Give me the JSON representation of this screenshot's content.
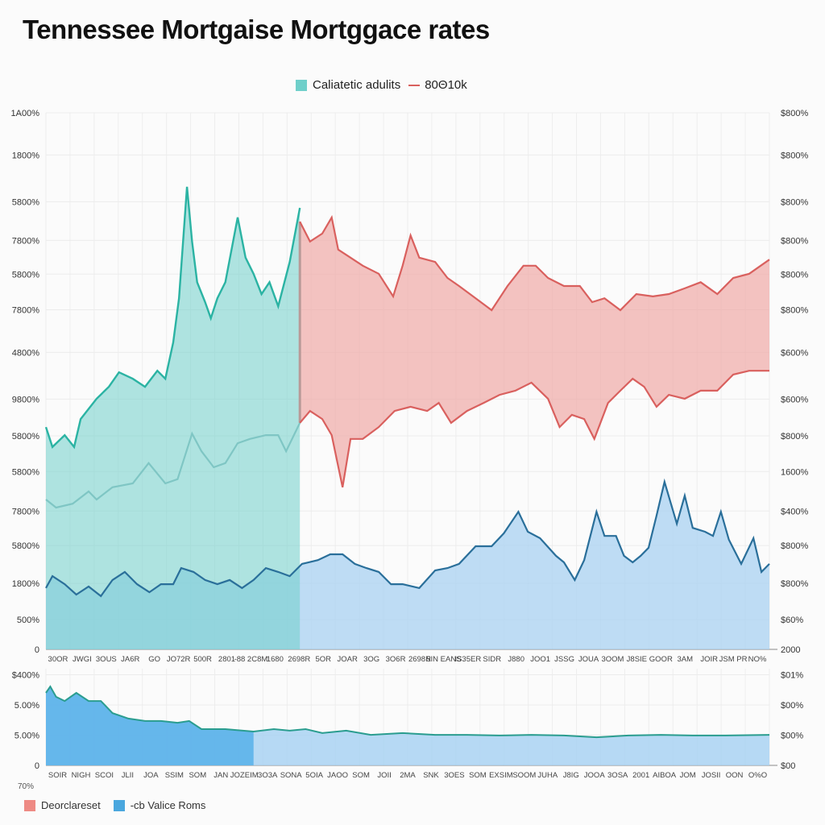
{
  "chart_data": [
    {
      "type": "area",
      "title": "Tennessee Mortgaise Mortggace rates",
      "legend": {
        "placement": "top-center",
        "entries": [
          "Caliatetic adulits",
          "80Θ10k"
        ]
      },
      "ylim": [
        0,
        1400
      ],
      "xlim": [
        0,
        100
      ],
      "grid": true,
      "y_ticks_left": [
        "1A00%",
        "1800%",
        "5800%",
        "7800%",
        "5800%",
        "7800%",
        "4800%",
        "9800%",
        "5800%",
        "5800%",
        "7800%",
        "5800%",
        "1800%",
        "500%",
        "0"
      ],
      "y_ticks_left_values": [
        1400,
        1290,
        1168,
        1067,
        979,
        886,
        775,
        653,
        557,
        464,
        361,
        271,
        172,
        78,
        0
      ],
      "y_ticks_right": [
        "$800%",
        "$800%",
        "$800%",
        "$800%",
        "$800%",
        "$800%",
        "$600%",
        "$600%",
        "$800%",
        "1600%",
        "$400%",
        "$800%",
        "$800%",
        "$60%",
        "2000"
      ],
      "x_ticks": [
        "30OR",
        "JWGI",
        "3OUS",
        "JA6R",
        "GO",
        "JO72R",
        "500R",
        "2801",
        "-88 2C8M",
        "1680",
        "2698R",
        "5OR",
        "JOAR",
        "3OG",
        "3O6R",
        "2698R",
        "5IN EANS",
        "IS35ER",
        "SIDR",
        "J880",
        "JOO1",
        "JSSG",
        "JOUA",
        "3OOM",
        "J8SIE",
        "GOOR",
        "3AM",
        "JOIR",
        "JSM PR",
        "NO%"
      ],
      "series": [
        {
          "name": "Caliatetic adulits (upper)",
          "color": "#2bb3a3",
          "x": [
            0,
            0.9,
            2.6,
            3.9,
            4.8,
            7.0,
            8.7,
            10.1,
            12.0,
            13.7,
            15.4,
            16.5,
            17.6,
            18.4,
            19.5,
            20.2,
            20.9,
            22.0,
            22.8,
            23.7,
            24.8,
            26.5,
            27.6,
            28.7,
            29.8,
            30.9,
            32.1,
            33.7,
            35.1
          ],
          "y": [
            580,
            528,
            559,
            528,
            601,
            654,
            685,
            723,
            706,
            685,
            727,
            706,
            801,
            916,
            1207,
            1064,
            958,
            906,
            864,
            916,
            958,
            1127,
            1022,
            980,
            927,
            958,
            895,
            1011,
            1152
          ]
        },
        {
          "name": "Caliatetic adulits (lower)",
          "color": "#7fc6c4",
          "x": [
            0,
            1.4,
            3.7,
            5.9,
            7.0,
            9.2,
            12.0,
            14.2,
            16.5,
            18.2,
            20.2,
            21.5,
            23.2,
            24.8,
            26.5,
            28.2,
            30.4,
            32.1,
            33.2,
            35.1
          ],
          "y": [
            391,
            370,
            380,
            412,
            391,
            423,
            433,
            486,
            433,
            444,
            563,
            517,
            475,
            486,
            538,
            549,
            559,
            559,
            517,
            591
          ]
        },
        {
          "name": "80Θ10k (upper)",
          "color": "#d9605e",
          "x": [
            35.1,
            36.5,
            38.2,
            39.5,
            40.4,
            42.1,
            43.8,
            46.0,
            48.0,
            49.3,
            50.4,
            51.6,
            53.8,
            55.5,
            57.1,
            59.4,
            61.6,
            63.8,
            66.0,
            67.7,
            69.4,
            71.6,
            73.8,
            75.5,
            77.2,
            79.4,
            81.6,
            83.9,
            86.1,
            88.3,
            90.5,
            92.8,
            95.0,
            97.2,
            100
          ],
          "y": [
            1116,
            1064,
            1085,
            1127,
            1043,
            1022,
            1001,
            980,
            921,
            1001,
            1080,
            1022,
            1011,
            969,
            948,
            916,
            885,
            948,
            1001,
            1001,
            969,
            948,
            948,
            906,
            916,
            885,
            927,
            921,
            927,
            942,
            958,
            927,
            969,
            980,
            1017
          ]
        },
        {
          "name": "80Θ10k (lower)",
          "color": "#d9605e",
          "x": [
            35.1,
            36.5,
            38.2,
            39.5,
            41.0,
            42.1,
            43.8,
            46.0,
            48.2,
            50.4,
            52.7,
            54.3,
            56.0,
            58.2,
            60.5,
            62.7,
            64.9,
            67.1,
            69.4,
            71.0,
            72.7,
            74.4,
            75.8,
            77.7,
            79.4,
            81.1,
            82.7,
            84.4,
            86.1,
            88.3,
            90.5,
            92.8,
            95.0,
            97.2,
            100
          ],
          "y": [
            591,
            622,
            601,
            559,
            423,
            549,
            549,
            580,
            622,
            633,
            622,
            643,
            591,
            622,
            643,
            664,
            675,
            696,
            654,
            580,
            612,
            601,
            549,
            643,
            675,
            706,
            685,
            633,
            664,
            654,
            675,
            675,
            717,
            727,
            727
          ]
        },
        {
          "name": "Blue series",
          "color": "#2a6f9a",
          "x": [
            0,
            0.9,
            2.6,
            4.2,
            5.9,
            7.6,
            9.2,
            10.9,
            12.6,
            14.3,
            15.9,
            17.6,
            18.7,
            20.4,
            22.0,
            23.7,
            25.4,
            27.1,
            28.7,
            30.4,
            32.1,
            33.7,
            35.4,
            37.6,
            39.3,
            41.0,
            42.7,
            44.3,
            46.0,
            47.7,
            49.3,
            51.6,
            53.8,
            55.5,
            57.1,
            59.4,
            61.6,
            63.3,
            65.3,
            66.6,
            68.3,
            70.5,
            71.6,
            73.1,
            74.4,
            76.1,
            77.2,
            78.8,
            79.9,
            81.1,
            82.2,
            83.3,
            84.4,
            85.5,
            87.2,
            88.3,
            89.4,
            91.1,
            92.2,
            93.3,
            94.4,
            96.1,
            97.8,
            98.9,
            100
          ],
          "y": [
            160,
            191,
            170,
            143,
            164,
            139,
            181,
            202,
            170,
            149,
            170,
            170,
            212,
            202,
            181,
            170,
            181,
            160,
            181,
            212,
            202,
            191,
            223,
            233,
            248,
            248,
            223,
            212,
            202,
            170,
            170,
            160,
            206,
            212,
            223,
            269,
            269,
            303,
            359,
            307,
            290,
            244,
            227,
            181,
            233,
            359,
            296,
            296,
            244,
            227,
            244,
            265,
            349,
            437,
            328,
            401,
            317,
            307,
            296,
            359,
            286,
            223,
            290,
            202,
            223
          ]
        }
      ]
    },
    {
      "type": "area",
      "legend": {
        "placement": "bottom-left",
        "entries": [
          "Deorclareset",
          "-cb  Valice Roms"
        ]
      },
      "ylim": [
        0,
        3.2
      ],
      "xlim": [
        0,
        100
      ],
      "y_ticks_left": [
        "$400%",
        "5.00%",
        "5.00%",
        "0"
      ],
      "y_ticks_left_values": [
        3.0,
        2.0,
        1.0,
        0
      ],
      "y_ticks_right": [
        "$01%",
        "$00%",
        "$00%",
        "$00"
      ],
      "extra_label": "70%",
      "x_ticks": [
        "SOIR",
        "NIGH",
        "SCOI",
        "JLII",
        "JOA",
        "SSIM",
        "SOM",
        "JAN",
        "JOZEIM",
        "3O3A",
        "SONA",
        "5OIA",
        "JAOO",
        "SOM",
        "JOII",
        "2MA",
        "SNK",
        "3OES",
        "SOM",
        "EXSIM",
        "SOOM",
        "JUHA",
        "J8IG",
        "JOOA",
        "3OSA",
        "2001",
        "AIBOA",
        "JOM",
        "JOSII",
        "OON",
        "O%O"
      ],
      "dark_fill_until_x": 28.7,
      "series": [
        {
          "name": "Valice Roms",
          "color": "#2a9d8f",
          "x": [
            0,
            0.6,
            1.4,
            2.6,
            4.2,
            5.9,
            7.6,
            9.2,
            11.4,
            13.7,
            15.9,
            18.2,
            19.8,
            21.5,
            24.8,
            28.7,
            31.5,
            33.7,
            35.9,
            38.2,
            41.5,
            44.9,
            49.3,
            53.8,
            58.2,
            62.7,
            67.1,
            71.6,
            76.1,
            80.5,
            85.0,
            89.4,
            93.9,
            100
          ],
          "y": [
            2.4,
            2.61,
            2.27,
            2.13,
            2.4,
            2.13,
            2.13,
            1.73,
            1.55,
            1.47,
            1.47,
            1.41,
            1.47,
            1.2,
            1.2,
            1.12,
            1.2,
            1.15,
            1.2,
            1.07,
            1.15,
            1.01,
            1.07,
            1.01,
            1.01,
            0.99,
            1.01,
            0.99,
            0.93,
            0.99,
            1.01,
            0.99,
            0.99,
            1.01
          ]
        }
      ]
    }
  ],
  "colors": {
    "teal": "#6fd0cb",
    "red": "#f0a9a6",
    "blue": "#a9d2f2",
    "blue_dark": "#5cb3ea",
    "legend_red": "#ee8a84",
    "legend_blue": "#4aa7de"
  }
}
